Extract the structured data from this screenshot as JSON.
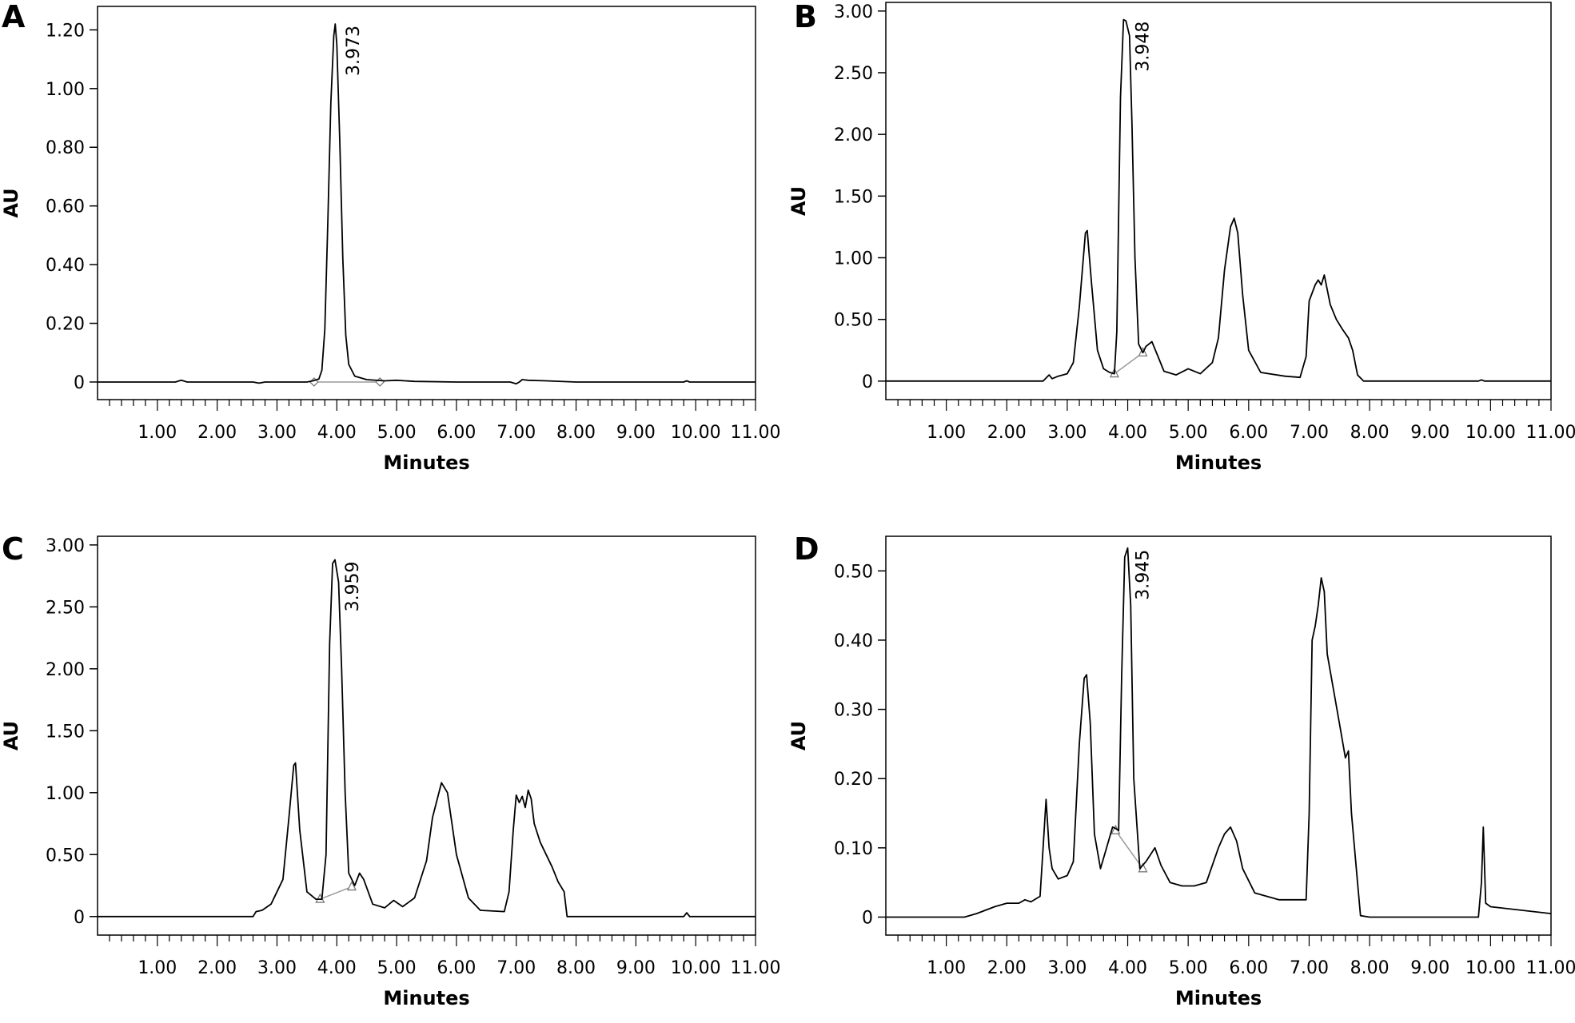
{
  "figure": {
    "panels": [
      {
        "letter": "A",
        "x_axis_label": "Minutes",
        "y_axis_label": "AU",
        "peak_label": "3.973"
      },
      {
        "letter": "B",
        "x_axis_label": "Minutes",
        "y_axis_label": "AU",
        "peak_label": "3.948"
      },
      {
        "letter": "C",
        "x_axis_label": "Minutes",
        "y_axis_label": "AU",
        "peak_label": "3.959"
      },
      {
        "letter": "D",
        "x_axis_label": "Minutes",
        "y_axis_label": "AU",
        "peak_label": "3.945"
      }
    ]
  },
  "chart_data": [
    {
      "type": "line",
      "panel": "A",
      "xlabel": "Minutes",
      "ylabel": "AU",
      "xlim": [
        0,
        11.0
      ],
      "ylim": [
        -0.06,
        1.28
      ],
      "x_ticks": [
        "1.00",
        "2.00",
        "3.00",
        "4.00",
        "5.00",
        "6.00",
        "7.00",
        "8.00",
        "9.00",
        "10.00",
        "11.00"
      ],
      "y_ticks": [
        {
          "value": 0,
          "label": "0"
        },
        {
          "value": 0.2,
          "label": "0.20"
        },
        {
          "value": 0.4,
          "label": "0.40"
        },
        {
          "value": 0.6,
          "label": "0.60"
        },
        {
          "value": 0.8,
          "label": "0.80"
        },
        {
          "value": 1.0,
          "label": "1.00"
        },
        {
          "value": 1.2,
          "label": "1.20"
        }
      ],
      "annotation": {
        "x": 3.973,
        "y": 1.22,
        "text": "3.973"
      },
      "integration_marks": [
        {
          "x": 3.62,
          "y": 0.0,
          "shape": "diamond"
        },
        {
          "x": 4.72,
          "y": 0.0,
          "shape": "diamond"
        }
      ],
      "series": [
        {
          "x": [
            0.0,
            1.3,
            1.4,
            1.5,
            2.6,
            2.7,
            2.8,
            3.5,
            3.6,
            3.7,
            3.75,
            3.8,
            3.85,
            3.9,
            3.95,
            3.973,
            4.0,
            4.05,
            4.1,
            4.15,
            4.2,
            4.3,
            4.5,
            4.8,
            5.0,
            5.3,
            6.0,
            6.9,
            7.0,
            7.05,
            7.1,
            7.2,
            7.5,
            8.0,
            9.8,
            9.85,
            9.9,
            11.0
          ],
          "y": [
            0.0,
            0.0,
            0.006,
            0.0,
            0.0,
            -0.004,
            0.0,
            0.0,
            0.004,
            0.01,
            0.04,
            0.18,
            0.55,
            0.95,
            1.18,
            1.22,
            1.15,
            0.82,
            0.42,
            0.16,
            0.06,
            0.02,
            0.008,
            0.004,
            0.006,
            0.002,
            0.0,
            0.0,
            -0.006,
            0.0,
            0.008,
            0.006,
            0.004,
            0.0,
            0.0,
            0.004,
            0.0,
            0.0
          ]
        }
      ]
    },
    {
      "type": "line",
      "panel": "B",
      "xlabel": "Minutes",
      "ylabel": "AU",
      "xlim": [
        0,
        11.0
      ],
      "ylim": [
        -0.15,
        3.07
      ],
      "x_ticks": [
        "1.00",
        "2.00",
        "3.00",
        "4.00",
        "5.00",
        "6.00",
        "7.00",
        "8.00",
        "9.00",
        "10.00",
        "11.00"
      ],
      "y_ticks": [
        {
          "value": 0,
          "label": "0"
        },
        {
          "value": 0.5,
          "label": "0.50"
        },
        {
          "value": 1.0,
          "label": "1.00"
        },
        {
          "value": 1.5,
          "label": "1.50"
        },
        {
          "value": 2.0,
          "label": "2.00"
        },
        {
          "value": 2.5,
          "label": "2.50"
        },
        {
          "value": 3.0,
          "label": "3.00"
        }
      ],
      "annotation": {
        "x": 3.948,
        "y": 2.93,
        "text": "3.948"
      },
      "integration_marks": [
        {
          "x": 3.78,
          "y": 0.06,
          "shape": "triangle"
        },
        {
          "x": 4.25,
          "y": 0.23,
          "shape": "triangle"
        }
      ],
      "series": [
        {
          "x": [
            0.0,
            2.6,
            2.7,
            2.75,
            2.85,
            3.0,
            3.1,
            3.2,
            3.3,
            3.33,
            3.4,
            3.5,
            3.6,
            3.7,
            3.78,
            3.82,
            3.88,
            3.93,
            3.97,
            4.03,
            4.07,
            4.12,
            4.18,
            4.25,
            4.3,
            4.4,
            4.5,
            4.6,
            4.8,
            5.0,
            5.2,
            5.4,
            5.5,
            5.6,
            5.7,
            5.76,
            5.82,
            5.9,
            6.0,
            6.2,
            6.6,
            6.85,
            6.95,
            7.0,
            7.1,
            7.15,
            7.2,
            7.25,
            7.35,
            7.45,
            7.55,
            7.65,
            7.72,
            7.8,
            7.9,
            9.8,
            9.85,
            9.9,
            11.0
          ],
          "y": [
            0.0,
            0.0,
            0.05,
            0.02,
            0.04,
            0.06,
            0.15,
            0.6,
            1.2,
            1.22,
            0.8,
            0.25,
            0.1,
            0.07,
            0.06,
            0.4,
            2.3,
            2.93,
            2.92,
            2.8,
            2.1,
            1.0,
            0.3,
            0.23,
            0.28,
            0.32,
            0.2,
            0.08,
            0.05,
            0.1,
            0.06,
            0.15,
            0.35,
            0.9,
            1.25,
            1.32,
            1.2,
            0.7,
            0.25,
            0.07,
            0.04,
            0.03,
            0.2,
            0.65,
            0.78,
            0.82,
            0.78,
            0.86,
            0.62,
            0.5,
            0.42,
            0.35,
            0.25,
            0.05,
            0.0,
            0.0,
            0.01,
            0.0,
            0.0
          ]
        }
      ]
    },
    {
      "type": "line",
      "panel": "C",
      "xlabel": "Minutes",
      "ylabel": "AU",
      "xlim": [
        0,
        11.0
      ],
      "ylim": [
        -0.15,
        3.07
      ],
      "x_ticks": [
        "1.00",
        "2.00",
        "3.00",
        "4.00",
        "5.00",
        "6.00",
        "7.00",
        "8.00",
        "9.00",
        "10.00",
        "11.00"
      ],
      "y_ticks": [
        {
          "value": 0,
          "label": "0"
        },
        {
          "value": 0.5,
          "label": "0.50"
        },
        {
          "value": 1.0,
          "label": "1.00"
        },
        {
          "value": 1.5,
          "label": "1.50"
        },
        {
          "value": 2.0,
          "label": "2.00"
        },
        {
          "value": 2.5,
          "label": "2.50"
        },
        {
          "value": 3.0,
          "label": "3.00"
        }
      ],
      "annotation": {
        "x": 3.959,
        "y": 2.88,
        "text": "3.959"
      },
      "integration_marks": [
        {
          "x": 3.72,
          "y": 0.14,
          "shape": "triangle"
        },
        {
          "x": 4.25,
          "y": 0.24,
          "shape": "triangle"
        }
      ],
      "series": [
        {
          "x": [
            0.0,
            2.6,
            2.65,
            2.75,
            2.9,
            3.1,
            3.2,
            3.28,
            3.31,
            3.38,
            3.5,
            3.65,
            3.75,
            3.82,
            3.88,
            3.93,
            3.97,
            4.03,
            4.08,
            4.14,
            4.2,
            4.3,
            4.38,
            4.45,
            4.6,
            4.8,
            4.95,
            5.1,
            5.3,
            5.5,
            5.6,
            5.75,
            5.85,
            6.0,
            6.2,
            6.4,
            6.8,
            6.88,
            6.95,
            7.0,
            7.05,
            7.1,
            7.15,
            7.2,
            7.25,
            7.3,
            7.4,
            7.6,
            7.7,
            7.8,
            7.85,
            9.8,
            9.85,
            9.9,
            11.0
          ],
          "y": [
            0.0,
            0.0,
            0.04,
            0.05,
            0.1,
            0.3,
            0.8,
            1.22,
            1.24,
            0.7,
            0.2,
            0.14,
            0.14,
            0.5,
            2.2,
            2.85,
            2.88,
            2.7,
            2.0,
            1.0,
            0.35,
            0.25,
            0.35,
            0.3,
            0.1,
            0.07,
            0.13,
            0.08,
            0.15,
            0.45,
            0.8,
            1.08,
            1.0,
            0.5,
            0.15,
            0.05,
            0.04,
            0.2,
            0.7,
            0.98,
            0.92,
            0.97,
            0.88,
            1.02,
            0.95,
            0.75,
            0.6,
            0.4,
            0.28,
            0.2,
            0.0,
            0.0,
            0.03,
            0.0,
            0.0
          ]
        }
      ]
    },
    {
      "type": "line",
      "panel": "D",
      "xlabel": "Minutes",
      "ylabel": "AU",
      "xlim": [
        0,
        11.0
      ],
      "ylim": [
        -0.026,
        0.55
      ],
      "x_ticks": [
        "1.00",
        "2.00",
        "3.00",
        "4.00",
        "5.00",
        "6.00",
        "7.00",
        "8.00",
        "9.00",
        "10.00",
        "11.00"
      ],
      "y_ticks": [
        {
          "value": 0,
          "label": "0"
        },
        {
          "value": 0.1,
          "label": "0.10"
        },
        {
          "value": 0.2,
          "label": "0.20"
        },
        {
          "value": 0.3,
          "label": "0.30"
        },
        {
          "value": 0.4,
          "label": "0.40"
        },
        {
          "value": 0.5,
          "label": "0.50"
        }
      ],
      "annotation": {
        "x": 3.945,
        "y": 0.533,
        "text": "3.945"
      },
      "integration_marks": [
        {
          "x": 3.8,
          "y": 0.125,
          "shape": "triangle"
        },
        {
          "x": 4.25,
          "y": 0.07,
          "shape": "triangle"
        }
      ],
      "series": [
        {
          "x": [
            0.0,
            1.3,
            1.5,
            1.8,
            2.0,
            2.2,
            2.3,
            2.4,
            2.55,
            2.6,
            2.65,
            2.7,
            2.75,
            2.85,
            3.0,
            3.1,
            3.2,
            3.28,
            3.32,
            3.38,
            3.45,
            3.55,
            3.65,
            3.75,
            3.8,
            3.85,
            3.9,
            3.95,
            4.0,
            4.05,
            4.1,
            4.2,
            4.3,
            4.45,
            4.55,
            4.7,
            4.9,
            5.1,
            5.3,
            5.5,
            5.6,
            5.7,
            5.8,
            5.9,
            6.1,
            6.5,
            6.95,
            7.0,
            7.05,
            7.1,
            7.15,
            7.2,
            7.25,
            7.3,
            7.4,
            7.5,
            7.6,
            7.65,
            7.7,
            7.8,
            7.85,
            8.0,
            9.8,
            9.85,
            9.88,
            9.92,
            10.0,
            11.0
          ],
          "y": [
            0.0,
            0.0,
            0.005,
            0.015,
            0.02,
            0.02,
            0.025,
            0.022,
            0.03,
            0.1,
            0.17,
            0.1,
            0.07,
            0.055,
            0.06,
            0.08,
            0.25,
            0.345,
            0.35,
            0.28,
            0.12,
            0.07,
            0.1,
            0.13,
            0.128,
            0.125,
            0.35,
            0.52,
            0.533,
            0.45,
            0.2,
            0.07,
            0.08,
            0.1,
            0.075,
            0.05,
            0.045,
            0.045,
            0.05,
            0.1,
            0.12,
            0.13,
            0.11,
            0.07,
            0.035,
            0.025,
            0.025,
            0.15,
            0.4,
            0.42,
            0.45,
            0.49,
            0.47,
            0.38,
            0.33,
            0.28,
            0.23,
            0.24,
            0.15,
            0.05,
            0.002,
            0.0,
            0.0,
            0.05,
            0.13,
            0.02,
            0.015,
            0.005
          ]
        }
      ]
    }
  ]
}
